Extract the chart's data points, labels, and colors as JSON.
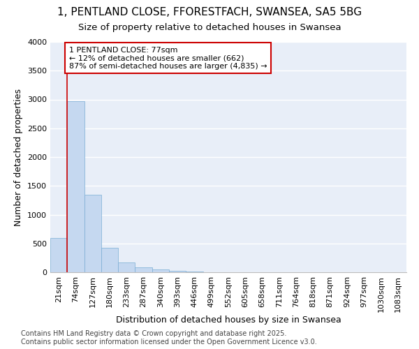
{
  "title_line1": "1, PENTLAND CLOSE, FFORESTFACH, SWANSEA, SA5 5BG",
  "title_line2": "Size of property relative to detached houses in Swansea",
  "xlabel": "Distribution of detached houses by size in Swansea",
  "ylabel": "Number of detached properties",
  "categories": [
    "21sqm",
    "74sqm",
    "127sqm",
    "180sqm",
    "233sqm",
    "287sqm",
    "340sqm",
    "393sqm",
    "446sqm",
    "499sqm",
    "552sqm",
    "605sqm",
    "658sqm",
    "711sqm",
    "764sqm",
    "818sqm",
    "871sqm",
    "924sqm",
    "977sqm",
    "1030sqm",
    "1083sqm"
  ],
  "values": [
    600,
    2970,
    1340,
    430,
    175,
    90,
    50,
    25,
    8,
    3,
    1,
    0,
    0,
    0,
    0,
    0,
    0,
    0,
    0,
    0,
    0
  ],
  "bar_color": "#c5d8f0",
  "bar_edge_color": "#7aadd4",
  "background_color": "#e8eef8",
  "grid_color": "#ffffff",
  "annotation_text": "1 PENTLAND CLOSE: 77sqm\n← 12% of detached houses are smaller (662)\n87% of semi-detached houses are larger (4,835) →",
  "annotation_box_color": "#ffffff",
  "annotation_box_edge_color": "#cc0000",
  "vline_x": 1,
  "vline_color": "#cc0000",
  "ylim": [
    0,
    4000
  ],
  "yticks": [
    0,
    500,
    1000,
    1500,
    2000,
    2500,
    3000,
    3500,
    4000
  ],
  "footnote": "Contains HM Land Registry data © Crown copyright and database right 2025.\nContains public sector information licensed under the Open Government Licence v3.0.",
  "title_fontsize": 11,
  "subtitle_fontsize": 9.5,
  "axis_label_fontsize": 9,
  "tick_fontsize": 8,
  "annotation_fontsize": 8,
  "footnote_fontsize": 7
}
